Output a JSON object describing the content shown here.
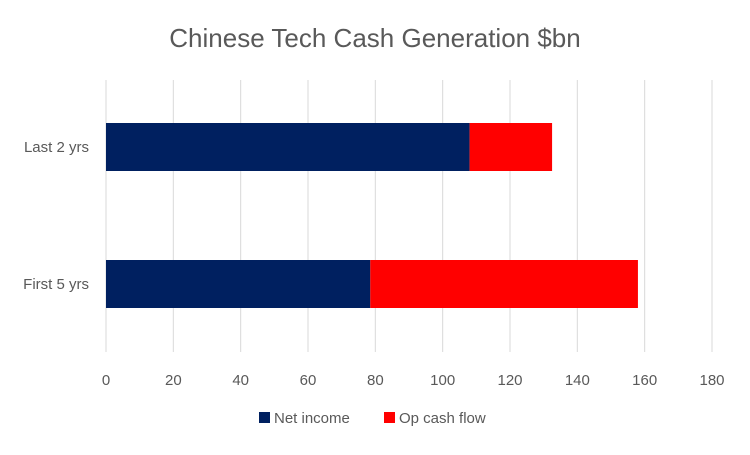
{
  "chart_data": {
    "type": "bar",
    "orientation": "horizontal",
    "stacked": true,
    "title": "Chinese Tech Cash Generation $bn",
    "categories": [
      "Last 2 yrs",
      "First 5 yrs"
    ],
    "series": [
      {
        "name": "Net income",
        "values": [
          108,
          78.5
        ],
        "color": "#002060"
      },
      {
        "name": "Op cash flow",
        "values": [
          24.5,
          79.5
        ],
        "color": "#FF0000"
      }
    ],
    "xlim": [
      0,
      180
    ],
    "xticks": [
      "0",
      "20",
      "40",
      "60",
      "80",
      "100",
      "120",
      "140",
      "160",
      "180"
    ],
    "grid": "vertical",
    "legend_position": "bottom"
  }
}
